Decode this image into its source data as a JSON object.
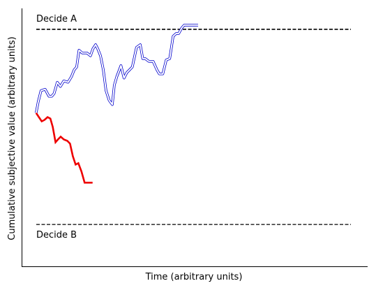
{
  "chart_data": {
    "type": "line",
    "title": "",
    "xlabel": "Time (arbitrary units)",
    "ylabel": "Cumulative subjective value (arbitrary units)",
    "xlim": [
      0,
      100
    ],
    "ylim": [
      -1.1,
      0.75
    ],
    "thresholds": [
      {
        "label": "Decide A",
        "value": 0.6,
        "style": "dashed",
        "color": "#000000"
      },
      {
        "label": "Decide B",
        "value": -0.8,
        "style": "dashed",
        "color": "#000000"
      }
    ],
    "series": [
      {
        "style": "double-line",
        "color": "#0000cc",
        "x": [
          4.2,
          4.8,
          5.6,
          6.8,
          7.9,
          8.7,
          9.4,
          10.3,
          11.2,
          12.2,
          13.4,
          14.4,
          15.2,
          15.9,
          16.6,
          17.5,
          18.9,
          19.9,
          20.6,
          21.4,
          22.0,
          22.8,
          23.6,
          24.4,
          25.3,
          26.2,
          26.8,
          27.5,
          28.1,
          28.7,
          29.6,
          30.4,
          31.2,
          32.0,
          33.2,
          34.3,
          35.0,
          35.7,
          36.8,
          38.0,
          39.1,
          39.8,
          40.8,
          41.8,
          42.8,
          43.8,
          44.7,
          45.4,
          46.3,
          47.0,
          47.7,
          48.6,
          49.4,
          50.2,
          51.0
        ],
        "y": [
          0.0,
          0.08,
          0.16,
          0.17,
          0.12,
          0.12,
          0.14,
          0.22,
          0.19,
          0.23,
          0.22,
          0.26,
          0.31,
          0.33,
          0.45,
          0.43,
          0.43,
          0.41,
          0.46,
          0.49,
          0.46,
          0.41,
          0.31,
          0.16,
          0.09,
          0.06,
          0.2,
          0.26,
          0.3,
          0.34,
          0.25,
          0.29,
          0.31,
          0.33,
          0.47,
          0.49,
          0.39,
          0.39,
          0.37,
          0.37,
          0.31,
          0.28,
          0.28,
          0.38,
          0.39,
          0.55,
          0.57,
          0.57,
          0.61,
          0.63,
          0.63,
          0.63,
          0.63,
          0.63,
          0.63
        ]
      },
      {
        "style": "solid",
        "color": "#ee0000",
        "x": [
          4.2,
          5.0,
          5.8,
          6.6,
          7.5,
          8.3,
          9.0,
          9.8,
          10.5,
          11.3,
          12.2,
          13.2,
          14.0,
          14.8,
          15.6,
          16.4,
          17.3,
          18.2,
          19.0,
          19.7,
          20.5
        ],
        "y": [
          0.0,
          -0.03,
          -0.06,
          -0.05,
          -0.03,
          -0.04,
          -0.1,
          -0.21,
          -0.19,
          -0.17,
          -0.19,
          -0.2,
          -0.22,
          -0.31,
          -0.37,
          -0.36,
          -0.42,
          -0.5,
          -0.5,
          -0.5,
          -0.5
        ]
      }
    ]
  }
}
